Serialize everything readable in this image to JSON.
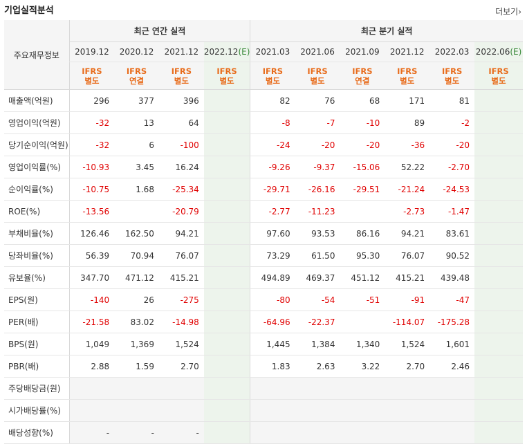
{
  "title": "기업실적분석",
  "more_label": "더보기",
  "more_icon": "chevron-right",
  "header": {
    "row_label": "주요재무정보",
    "annual_group": "최근 연간 실적",
    "quarter_group": "최근 분기 실적",
    "annual_periods": [
      "2019.12",
      "2020.12",
      "2021.12",
      "2022.12"
    ],
    "annual_est_suffix": "(E)",
    "quarter_periods": [
      "2021.03",
      "2021.06",
      "2021.09",
      "2021.12",
      "2022.03",
      "2022.06"
    ],
    "quarter_est_suffix": "(E)",
    "annual_accounting": [
      [
        "IFRS",
        "별도"
      ],
      [
        "IFRS",
        "연결"
      ],
      [
        "IFRS",
        "별도"
      ],
      [
        "IFRS",
        "별도"
      ]
    ],
    "quarter_accounting": [
      [
        "IFRS",
        "별도"
      ],
      [
        "IFRS",
        "별도"
      ],
      [
        "IFRS",
        "연결"
      ],
      [
        "IFRS",
        "별도"
      ],
      [
        "IFRS",
        "별도"
      ],
      [
        "IFRS",
        "별도"
      ]
    ]
  },
  "rows": [
    {
      "label": "매출액(억원)",
      "values": [
        "296",
        "377",
        "396",
        "",
        "82",
        "76",
        "68",
        "171",
        "81",
        ""
      ]
    },
    {
      "label": "영업이익(억원)",
      "values": [
        "-32",
        "13",
        "64",
        "",
        "-8",
        "-7",
        "-10",
        "89",
        "-2",
        ""
      ]
    },
    {
      "label": "당기순이익(억원)",
      "values": [
        "-32",
        "6",
        "-100",
        "",
        "-24",
        "-20",
        "-20",
        "-36",
        "-20",
        ""
      ]
    },
    {
      "label": "영업이익률(%)",
      "values": [
        "-10.93",
        "3.45",
        "16.24",
        "",
        "-9.26",
        "-9.37",
        "-15.06",
        "52.22",
        "-2.70",
        ""
      ]
    },
    {
      "label": "순이익률(%)",
      "values": [
        "-10.75",
        "1.68",
        "-25.34",
        "",
        "-29.71",
        "-26.16",
        "-29.51",
        "-21.24",
        "-24.53",
        ""
      ]
    },
    {
      "label": "ROE(%)",
      "values": [
        "-13.56",
        "",
        "-20.79",
        "",
        "-2.77",
        "-11.23",
        "",
        "-2.73",
        "-1.47",
        ""
      ]
    },
    {
      "label": "부채비율(%)",
      "values": [
        "126.46",
        "162.50",
        "94.21",
        "",
        "97.60",
        "93.53",
        "86.16",
        "94.21",
        "83.61",
        ""
      ]
    },
    {
      "label": "당좌비율(%)",
      "values": [
        "56.39",
        "70.94",
        "76.07",
        "",
        "73.29",
        "61.50",
        "95.30",
        "76.07",
        "90.52",
        ""
      ]
    },
    {
      "label": "유보율(%)",
      "values": [
        "347.70",
        "471.12",
        "415.21",
        "",
        "494.89",
        "469.37",
        "451.12",
        "415.21",
        "439.48",
        ""
      ]
    },
    {
      "label": "EPS(원)",
      "values": [
        "-140",
        "26",
        "-275",
        "",
        "-80",
        "-54",
        "-51",
        "-91",
        "-47",
        ""
      ]
    },
    {
      "label": "PER(배)",
      "values": [
        "-21.58",
        "83.02",
        "-14.98",
        "",
        "-64.96",
        "-22.37",
        "",
        "-114.07",
        "-175.28",
        ""
      ]
    },
    {
      "label": "BPS(원)",
      "values": [
        "1,049",
        "1,369",
        "1,524",
        "",
        "1,445",
        "1,384",
        "1,340",
        "1,524",
        "1,601",
        ""
      ]
    },
    {
      "label": "PBR(배)",
      "values": [
        "2.88",
        "1.59",
        "2.70",
        "",
        "1.83",
        "2.63",
        "3.22",
        "2.70",
        "2.46",
        ""
      ]
    },
    {
      "label": "주당배당금(원)",
      "values": [
        "",
        "",
        "",
        "",
        "",
        "",
        "",
        "",
        "",
        ""
      ]
    },
    {
      "label": "시가배당률(%)",
      "values": [
        "",
        "",
        "",
        "",
        "",
        "",
        "",
        "",
        "",
        ""
      ]
    },
    {
      "label": "배당성향(%)",
      "values": [
        "-",
        "-",
        "-",
        "",
        "",
        "",
        "",
        "",
        "",
        ""
      ]
    }
  ],
  "group_starts": [
    3,
    6,
    9,
    13
  ],
  "gray_rows": [
    13,
    14,
    15
  ],
  "colors": {
    "negative": "#e00000",
    "accounting": "#e86c1b",
    "estimate": "#3a8a3a",
    "estimate_bg": "#edf4ec"
  }
}
